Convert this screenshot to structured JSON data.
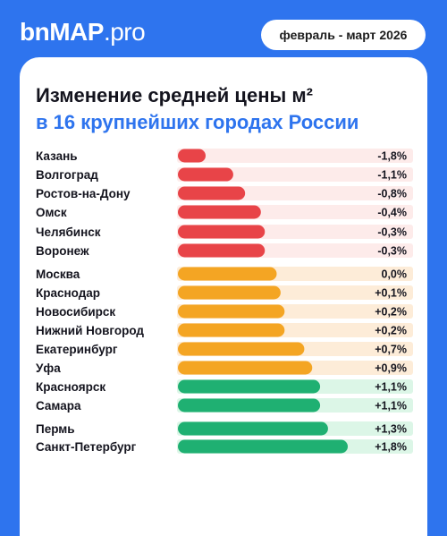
{
  "header": {
    "logo_left": "bn",
    "logo_bold": "MAP",
    "logo_right": ".pro",
    "period": "февраль - март 2026"
  },
  "title_line1": "Изменение средней цены м²",
  "title_line2": "в 16 крупнейших городах России",
  "colors": {
    "negative": "#e84448",
    "negative_track": "#fdebea",
    "neutral": "#f4a523",
    "neutral_track": "#fdecd8",
    "positive": "#1fb072",
    "positive_track": "#dcf6e7",
    "accent": "#2e74ee"
  },
  "chart_data": {
    "type": "bar",
    "orientation": "horizontal",
    "unit": "%",
    "categories": [
      "Казань",
      "Волгоград",
      "Ростов-на-Дону",
      "Омск",
      "Челябинск",
      "Воронеж",
      "Москва",
      "Краснодар",
      "Новосибирск",
      "Нижний Новгород",
      "Екатеринбург",
      "Уфа",
      "Красноярск",
      "Самара",
      "Пермь",
      "Санкт-Петербург"
    ],
    "values": [
      -1.8,
      -1.1,
      -0.8,
      -0.4,
      -0.3,
      -0.3,
      0.0,
      0.1,
      0.2,
      0.2,
      0.7,
      0.9,
      1.1,
      1.1,
      1.3,
      1.8
    ],
    "value_labels": [
      "-1,8%",
      "-1,1%",
      "-0,8%",
      "-0,4%",
      "-0,3%",
      "-0,3%",
      "0,0%",
      "+0,1%",
      "+0,2%",
      "+0,2%",
      "+0,7%",
      "+0,9%",
      "+1,1%",
      "+1,1%",
      "+1,3%",
      "+1,8%"
    ],
    "groups": [
      "negative",
      "negative",
      "negative",
      "negative",
      "negative",
      "negative",
      "neutral",
      "neutral",
      "neutral",
      "neutral",
      "neutral",
      "neutral",
      "positive",
      "positive",
      "positive",
      "positive"
    ]
  }
}
